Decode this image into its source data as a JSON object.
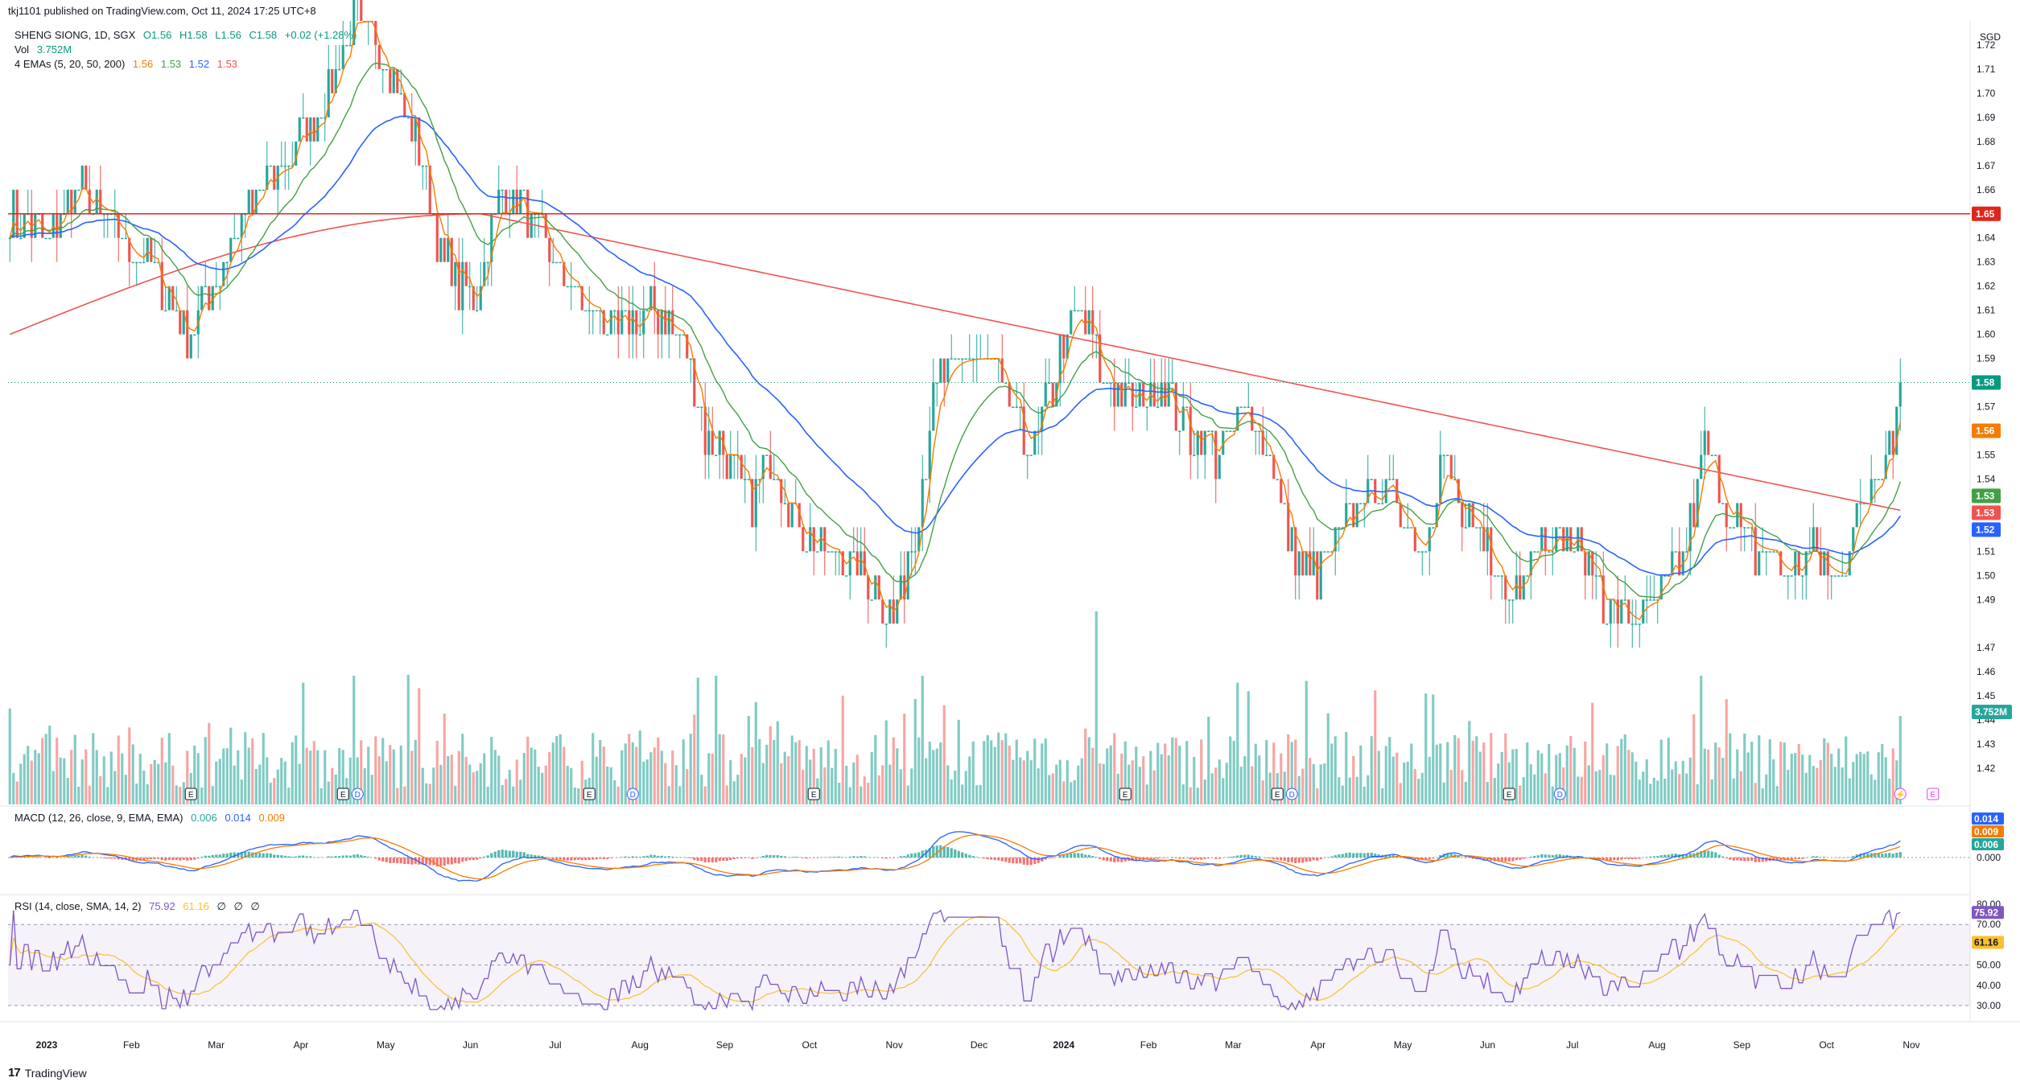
{
  "header": {
    "published": "tkj1101 published on TradingView.com, Oct 11, 2024 17:25 UTC+8"
  },
  "legend": {
    "symbol": "SHENG SIONG, 1D, SGX",
    "ohlc": {
      "o": "O1.56",
      "h": "H1.58",
      "l": "L1.56",
      "c": "C1.58",
      "chg": "+0.02 (+1.28%)"
    },
    "vol_label": "Vol",
    "vol_value": "3.752M",
    "ema_label": "4 EMAs (5, 20, 50, 200)",
    "ema_values": [
      "1.56",
      "1.53",
      "1.52",
      "1.53"
    ],
    "macd_label": "MACD (12, 26, close, 9, EMA, EMA)",
    "macd_values": [
      "0.006",
      "0.014",
      "0.009"
    ],
    "rsi_label": "RSI (14, close, SMA, 14, 2)",
    "rsi_values": [
      "75.92",
      "61.16"
    ],
    "rsi_dots": [
      "∅",
      "∅",
      "∅"
    ]
  },
  "footer": {
    "brand": "TradingView"
  },
  "colors": {
    "up": "#26a69a",
    "down": "#ef5350",
    "vol_up": "#80cbc4",
    "vol_down": "#f7a5a3",
    "ema5": "#f57c00",
    "ema20": "#43a047",
    "ema50": "#2962ff",
    "ema200": "#ef5350",
    "resistance": "#e0261b",
    "macd": "#2962ff",
    "signal": "#f57c00",
    "rsi": "#7e57c2",
    "rsi_ma": "#fbc02d"
  },
  "chart_data": {
    "type": "candlestick",
    "currency": "SGD",
    "price_axis": {
      "ylim": [
        1.405,
        1.73
      ],
      "ticks": [
        "1.72",
        "1.71",
        "1.70",
        "1.69",
        "1.68",
        "1.67",
        "1.66",
        "1.64",
        "1.63",
        "1.62",
        "1.61",
        "1.60",
        "1.59",
        "1.57",
        "1.56",
        "1.55",
        "1.54",
        "1.51",
        "1.50",
        "1.49",
        "1.47",
        "1.46",
        "1.45",
        "1.44",
        "1.43",
        "1.42"
      ]
    },
    "x_axis": {
      "labels": [
        "2023",
        "Feb",
        "Mar",
        "Apr",
        "May",
        "Jun",
        "Jul",
        "Aug",
        "Sep",
        "Oct",
        "Nov",
        "Dec",
        "2024",
        "Feb",
        "Mar",
        "Apr",
        "May",
        "Jun",
        "Jul",
        "Aug",
        "Sep",
        "Oct",
        "Nov"
      ]
    },
    "horizontal_line": {
      "value": 1.65,
      "label": "1.65"
    },
    "last_price": {
      "value": 1.58,
      "label": "1.58"
    },
    "price_badges": [
      {
        "label": "1.58",
        "value": 1.58,
        "color": "#089981"
      },
      {
        "label": "1.56",
        "value": 1.56,
        "color": "#f57c00"
      },
      {
        "label": "1.53",
        "value": 1.533,
        "color": "#43a047"
      },
      {
        "label": "1.53",
        "value": 1.526,
        "color": "#ef5350"
      },
      {
        "label": "1.52",
        "value": 1.519,
        "color": "#2962ff"
      }
    ],
    "volume_badge": {
      "label": "3.752M",
      "value": 3.752
    },
    "price_anchors": [
      [
        0,
        1.65
      ],
      [
        10,
        1.64
      ],
      [
        20,
        1.66
      ],
      [
        30,
        1.64
      ],
      [
        40,
        1.63
      ],
      [
        48,
        1.6
      ],
      [
        56,
        1.62
      ],
      [
        62,
        1.64
      ],
      [
        70,
        1.66
      ],
      [
        80,
        1.68
      ],
      [
        88,
        1.7
      ],
      [
        95,
        1.73
      ],
      [
        102,
        1.72
      ],
      [
        108,
        1.7
      ],
      [
        114,
        1.67
      ],
      [
        120,
        1.63
      ],
      [
        128,
        1.61
      ],
      [
        136,
        1.66
      ],
      [
        142,
        1.65
      ],
      [
        150,
        1.63
      ],
      [
        160,
        1.61
      ],
      [
        170,
        1.6
      ],
      [
        178,
        1.61
      ],
      [
        186,
        1.6
      ],
      [
        192,
        1.56
      ],
      [
        198,
        1.55
      ],
      [
        204,
        1.53
      ],
      [
        210,
        1.55
      ],
      [
        216,
        1.53
      ],
      [
        222,
        1.51
      ],
      [
        230,
        1.51
      ],
      [
        238,
        1.5
      ],
      [
        244,
        1.48
      ],
      [
        250,
        1.52
      ],
      [
        256,
        1.58
      ],
      [
        262,
        1.59
      ],
      [
        270,
        1.59
      ],
      [
        276,
        1.57
      ],
      [
        282,
        1.55
      ],
      [
        290,
        1.59
      ],
      [
        296,
        1.61
      ],
      [
        302,
        1.58
      ],
      [
        310,
        1.57
      ],
      [
        318,
        1.58
      ],
      [
        326,
        1.56
      ],
      [
        334,
        1.55
      ],
      [
        342,
        1.57
      ],
      [
        348,
        1.55
      ],
      [
        354,
        1.51
      ],
      [
        360,
        1.5
      ],
      [
        366,
        1.51
      ],
      [
        372,
        1.53
      ],
      [
        378,
        1.54
      ],
      [
        384,
        1.53
      ],
      [
        390,
        1.51
      ],
      [
        396,
        1.55
      ],
      [
        402,
        1.52
      ],
      [
        408,
        1.51
      ],
      [
        414,
        1.49
      ],
      [
        420,
        1.51
      ],
      [
        426,
        1.52
      ],
      [
        432,
        1.51
      ],
      [
        438,
        1.5
      ],
      [
        444,
        1.48
      ],
      [
        450,
        1.48
      ],
      [
        456,
        1.49
      ],
      [
        462,
        1.51
      ],
      [
        468,
        1.55
      ],
      [
        474,
        1.53
      ],
      [
        480,
        1.51
      ],
      [
        486,
        1.51
      ],
      [
        492,
        1.5
      ],
      [
        498,
        1.51
      ],
      [
        504,
        1.5
      ],
      [
        510,
        1.52
      ],
      [
        516,
        1.55
      ],
      [
        520,
        1.56
      ],
      [
        522,
        1.58
      ]
    ],
    "macd_axis": {
      "ticks": [
        "0.000"
      ],
      "badges": [
        "0.014",
        "0.009",
        "0.006"
      ]
    },
    "rsi_axis": {
      "ticks": [
        "80.00",
        "70.00",
        "50.00",
        "40.00",
        "30.00"
      ],
      "band": [
        30,
        70
      ],
      "badges": [
        "75.92",
        "61.16"
      ]
    },
    "event_markers": [
      {
        "kind": "E",
        "bar": 50
      },
      {
        "kind": "E",
        "bar": 92
      },
      {
        "kind": "D",
        "bar": 96
      },
      {
        "kind": "E",
        "bar": 160
      },
      {
        "kind": "D",
        "bar": 172
      },
      {
        "kind": "E",
        "bar": 222
      },
      {
        "kind": "E",
        "bar": 308
      },
      {
        "kind": "E",
        "bar": 350
      },
      {
        "kind": "D",
        "bar": 354
      },
      {
        "kind": "E",
        "bar": 414
      },
      {
        "kind": "D",
        "bar": 428
      },
      {
        "kind": "⚡",
        "bar": 522
      },
      {
        "kind": "E",
        "bar": 531
      }
    ]
  }
}
